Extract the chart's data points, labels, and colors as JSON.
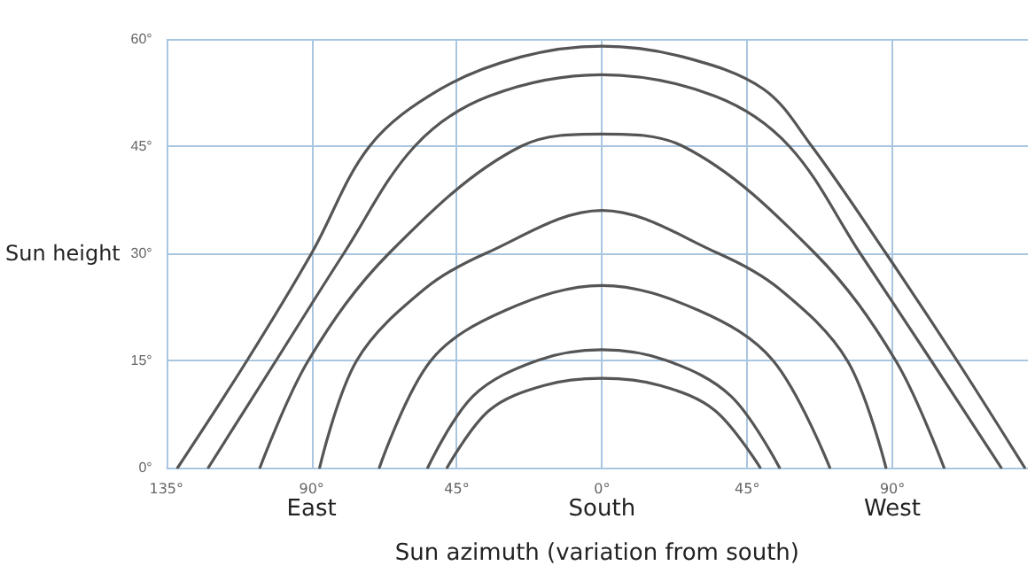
{
  "chart_data": {
    "type": "line",
    "xlabel": "Sun azimuth (variation from south)",
    "ylabel": "Sun height",
    "xlim": [
      -135,
      132
    ],
    "xticks": [
      {
        "value": -135,
        "label": "135°"
      },
      {
        "value": -90,
        "label": "90°"
      },
      {
        "value": -45,
        "label": "45°"
      },
      {
        "value": 0,
        "label": "0°"
      },
      {
        "value": 45,
        "label": "45°"
      },
      {
        "value": 90,
        "label": "90°"
      }
    ],
    "annotations": [
      "East",
      "South",
      "West"
    ],
    "ylim": [
      0,
      60
    ],
    "yticks": [
      {
        "value": 0,
        "label": "0°"
      },
      {
        "value": 15,
        "label": "15°"
      },
      {
        "value": 30,
        "label": "30°"
      },
      {
        "value": 45,
        "label": "45°"
      },
      {
        "value": 60,
        "label": "60°"
      }
    ],
    "grid": true,
    "marker": "none",
    "line_style": "solid",
    "series": [
      {
        "color": "#555555",
        "x": [
          -131.5,
          -110,
          -90,
          -72,
          -50,
          -25,
          0,
          25,
          50,
          65,
          88,
          110,
          131
        ],
        "values": [
          0,
          15,
          30,
          45,
          53,
          57.5,
          59,
          57.5,
          53,
          45,
          30,
          15,
          0
        ]
      },
      {
        "color": "#555555",
        "x": [
          -122,
          -101,
          -80,
          -58,
          -35,
          0,
          35,
          58,
          80,
          102,
          123.7
        ],
        "values": [
          0,
          15,
          30,
          45,
          52,
          55,
          52,
          45,
          30,
          15,
          0
        ]
      },
      {
        "color": "#555555",
        "x": [
          -106,
          -91,
          -66,
          -25,
          0,
          25,
          66,
          91,
          106
        ],
        "values": [
          0,
          15,
          30,
          45,
          46.7,
          45,
          30,
          15,
          0
        ]
      },
      {
        "color": "#555555",
        "x": [
          -87.5,
          -76,
          -55,
          -36,
          0,
          36,
          55,
          76,
          88
        ],
        "values": [
          0,
          15,
          25,
          30,
          36,
          30,
          25,
          15,
          0
        ]
      },
      {
        "color": "#555555",
        "x": [
          -69,
          -53,
          -30,
          0,
          30,
          53,
          70.6
        ],
        "values": [
          0,
          15,
          22,
          25.5,
          22,
          15,
          0
        ]
      },
      {
        "color": "#555555",
        "x": [
          -54,
          -40,
          -20,
          0,
          20,
          40,
          55
        ],
        "values": [
          0,
          10,
          15,
          16.5,
          15,
          10,
          0
        ]
      },
      {
        "color": "#555555",
        "x": [
          -48,
          -35,
          -18,
          0,
          18,
          35,
          49
        ],
        "values": [
          0,
          8,
          11.5,
          12.5,
          11.5,
          8,
          0
        ]
      }
    ]
  }
}
